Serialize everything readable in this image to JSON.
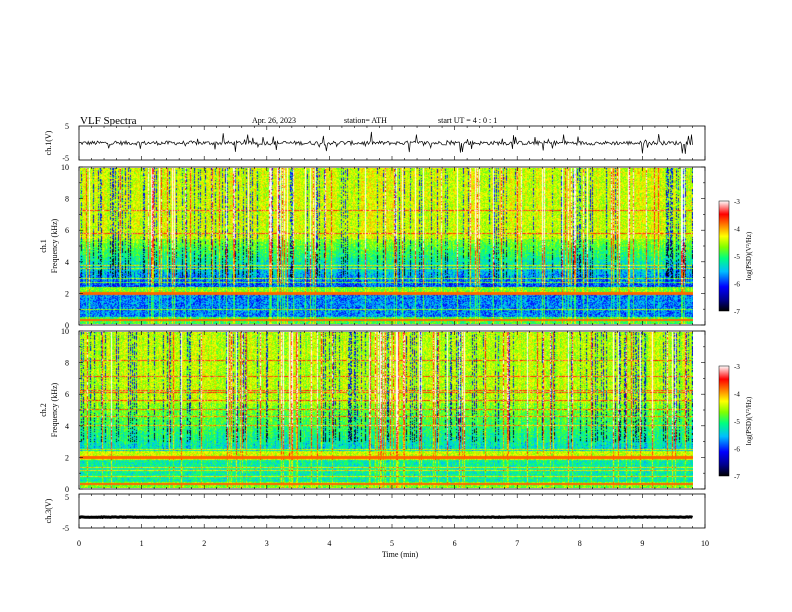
{
  "header": {
    "title": "VLF  Spectra",
    "date": "Apr. 26, 2023",
    "station": "station= ATH",
    "start": "start  UT  =   4 : 0  : 1"
  },
  "chart_data": [
    {
      "type": "line",
      "name": "ch1-waveform",
      "ylabel": "ch.1(V)",
      "ylim": [
        -5,
        5
      ],
      "yticks": [
        "5",
        "-5"
      ],
      "x_range": [
        0,
        9.8
      ],
      "baseline": 0,
      "noise_amplitude": 1.2,
      "color": "#000000"
    },
    {
      "type": "heatmap",
      "name": "ch1-spectrogram",
      "ylabel": "ch.1\nFrequency (kHz)",
      "ylim": [
        0,
        10
      ],
      "yticks": [
        "0",
        "2",
        "4",
        "6",
        "8",
        "10"
      ],
      "x_range": [
        0,
        9.8
      ],
      "colorbar": {
        "label": "log(PSD)(V²/Hz)",
        "ticks": [
          "-3",
          "-4",
          "-5",
          "-6",
          "-7"
        ],
        "range": [
          -7,
          -3
        ]
      }
    },
    {
      "type": "heatmap",
      "name": "ch2-spectrogram",
      "ylabel": "ch.2\nFrequency (kHz)",
      "ylim": [
        0,
        10
      ],
      "yticks": [
        "0",
        "2",
        "4",
        "6",
        "8",
        "10"
      ],
      "x_range": [
        0,
        9.8
      ],
      "colorbar": {
        "label": "log(PSD)(V²/Hz)",
        "ticks": [
          "-3",
          "-4",
          "-5",
          "-6",
          "-7"
        ],
        "range": [
          -7,
          -3
        ]
      }
    },
    {
      "type": "line",
      "name": "ch3-waveform",
      "ylabel": "ch.3(V)",
      "ylim": [
        -5,
        5
      ],
      "yticks": [
        "5",
        "-5"
      ],
      "x_range": [
        0,
        9.8
      ],
      "baseline": -1.8,
      "noise_amplitude": 0.15,
      "color": "#000000"
    }
  ],
  "x_axis": {
    "label": "Time  (min)",
    "range": [
      0,
      10
    ],
    "ticks": [
      "0",
      "1",
      "2",
      "3",
      "4",
      "5",
      "6",
      "7",
      "8",
      "9",
      "10"
    ]
  },
  "colors": {
    "scale": [
      "#000000",
      "#00008b",
      "#0000ff",
      "#00bfff",
      "#00ff80",
      "#80ff00",
      "#ffff00",
      "#ff8000",
      "#ff0000",
      "#ffffff"
    ]
  }
}
